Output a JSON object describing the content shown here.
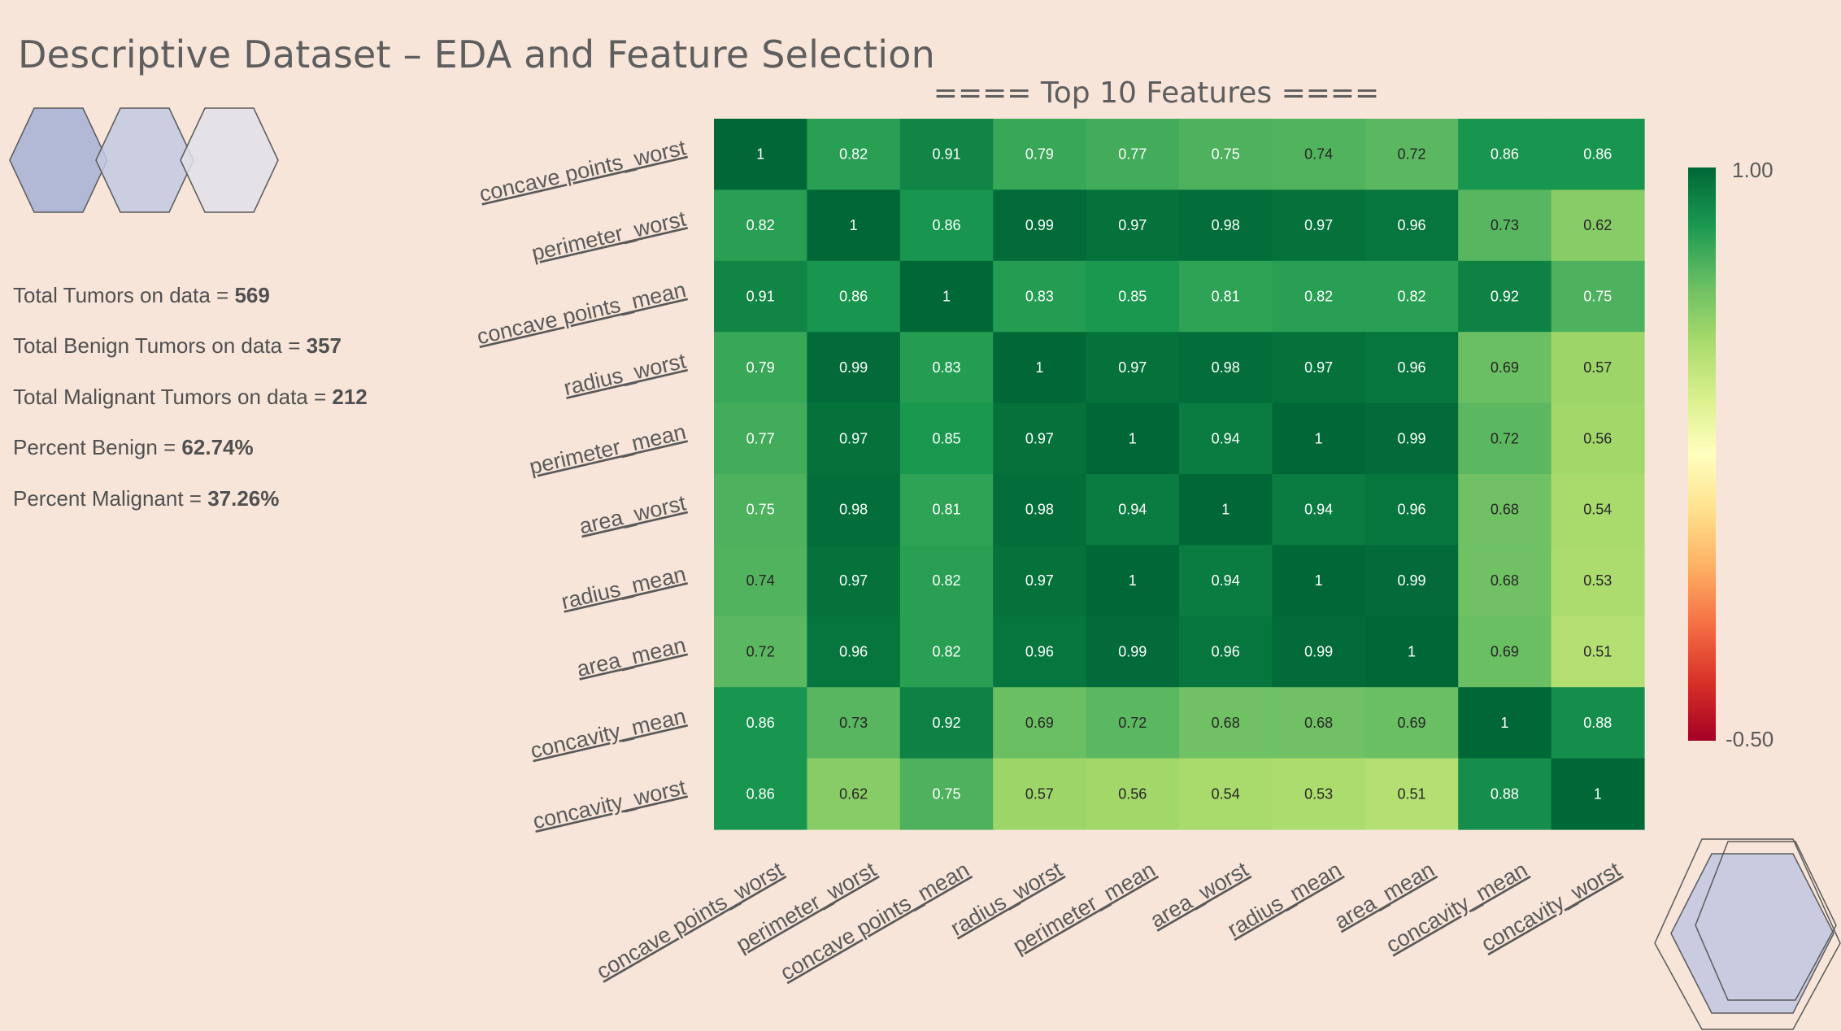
{
  "slide": {
    "title": "Descriptive Dataset – EDA and Feature Selection"
  },
  "stats": [
    {
      "label": "Total Tumors on data = ",
      "value": "569"
    },
    {
      "label": "Total Benign Tumors on data = ",
      "value": "357"
    },
    {
      "label": "Total Malignant Tumors on data = ",
      "value": "212"
    },
    {
      "label": "Percent Benign = ",
      "value": "62.74%"
    },
    {
      "label": "Percent Malignant = ",
      "value": "37.26%"
    }
  ],
  "colors": {
    "background": "#f7e5d9",
    "hex_fill_1": "#aab4d6",
    "hex_fill_2": "#c3c9e0",
    "hex_fill_3": "#e1e1e9",
    "hex_stroke": "#5a5a5a"
  },
  "chart_data": {
    "type": "heatmap",
    "title": "==== Top 10 Features ====",
    "colormap": "RdYlGn",
    "labels": [
      "concave points_worst",
      "perimeter_worst",
      "concave points_mean",
      "radius_worst",
      "perimeter_mean",
      "area_worst",
      "radius_mean",
      "area_mean",
      "concavity_mean",
      "concavity_worst"
    ],
    "values": [
      [
        1,
        0.82,
        0.91,
        0.79,
        0.77,
        0.75,
        0.74,
        0.72,
        0.86,
        0.86
      ],
      [
        0.82,
        1,
        0.86,
        0.99,
        0.97,
        0.98,
        0.97,
        0.96,
        0.73,
        0.62
      ],
      [
        0.91,
        0.86,
        1,
        0.83,
        0.85,
        0.81,
        0.82,
        0.82,
        0.92,
        0.75
      ],
      [
        0.79,
        0.99,
        0.83,
        1,
        0.97,
        0.98,
        0.97,
        0.96,
        0.69,
        0.57
      ],
      [
        0.77,
        0.97,
        0.85,
        0.97,
        1,
        0.94,
        1,
        0.99,
        0.72,
        0.56
      ],
      [
        0.75,
        0.98,
        0.81,
        0.98,
        0.94,
        1,
        0.94,
        0.96,
        0.68,
        0.54
      ],
      [
        0.74,
        0.97,
        0.82,
        0.97,
        1,
        0.94,
        1,
        0.99,
        0.68,
        0.53
      ],
      [
        0.72,
        0.96,
        0.82,
        0.96,
        0.99,
        0.96,
        0.99,
        1,
        0.69,
        0.51
      ],
      [
        0.86,
        0.73,
        0.92,
        0.69,
        0.72,
        0.68,
        0.68,
        0.69,
        1,
        0.88
      ],
      [
        0.86,
        0.62,
        0.75,
        0.57,
        0.56,
        0.54,
        0.53,
        0.51,
        0.88,
        1
      ]
    ],
    "colorbar": {
      "min": -0.5,
      "max": 1.0,
      "max_label": "1.00",
      "min_label": "-0.50"
    }
  }
}
